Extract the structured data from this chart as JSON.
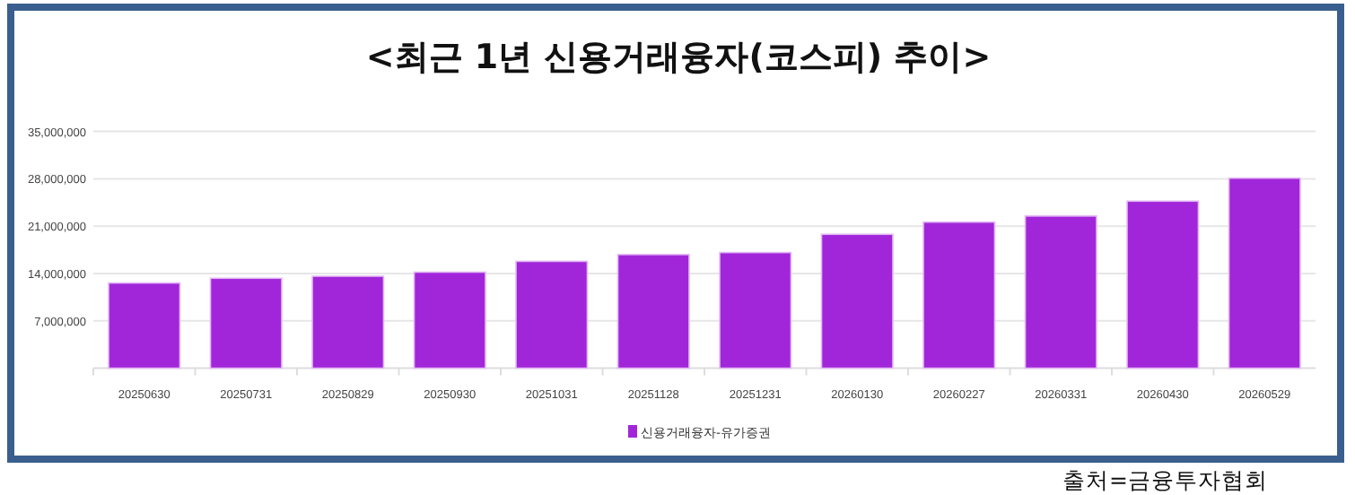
{
  "chart_data": {
    "type": "bar",
    "title": "<최근 1년 신용거래융자(코스피) 추이>",
    "categories": [
      "20250630",
      "20250731",
      "20250829",
      "20250930",
      "20251031",
      "20251128",
      "20251231",
      "20260130",
      "20260227",
      "20260331",
      "20260430",
      "20260529"
    ],
    "series": [
      {
        "name": "신용거래융자-유가증권",
        "color": "#a126d9",
        "values": [
          12600000,
          13300000,
          13600000,
          14200000,
          15800000,
          16800000,
          17100000,
          19800000,
          21600000,
          22500000,
          24700000,
          28100000
        ]
      }
    ],
    "ylim": [
      0,
      35000000
    ],
    "yticks": [
      {
        "value": 7000000,
        "label": "7,000,000"
      },
      {
        "value": 14000000,
        "label": "14,000,000"
      },
      {
        "value": 21000000,
        "label": "21,000,000"
      },
      {
        "value": 28000000,
        "label": "28,000,000"
      },
      {
        "value": 35000000,
        "label": "35,000,000"
      }
    ],
    "grid": "y",
    "legend": "bottom",
    "annotations": [
      "출처=금융투자협회"
    ]
  }
}
